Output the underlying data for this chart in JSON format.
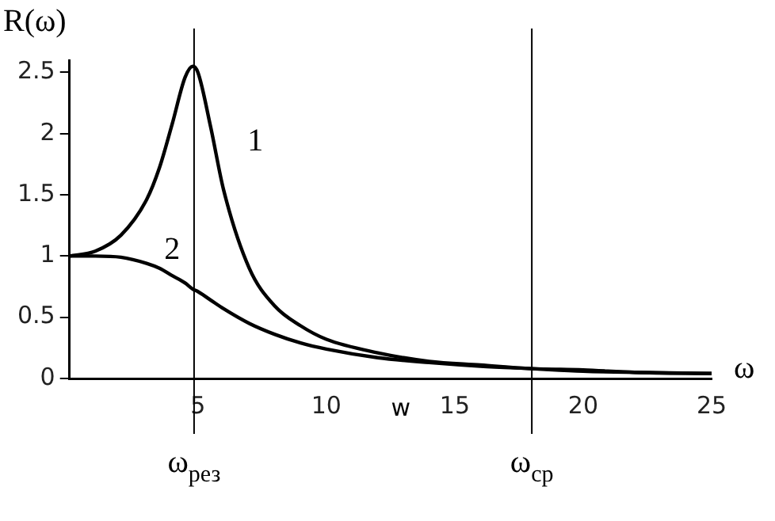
{
  "chart_data": {
    "type": "line",
    "xlabel": "ω",
    "ylabel": "R(ω)",
    "x": [
      0,
      1,
      2,
      3,
      3.5,
      4,
      4.5,
      4.8,
      5,
      5.5,
      6,
      7,
      8,
      9,
      10,
      12,
      14,
      16,
      18,
      20,
      22,
      25
    ],
    "series": [
      {
        "name": "1",
        "color": "#000000",
        "values": [
          1,
          1.04,
          1.17,
          1.46,
          1.72,
          2.08,
          2.46,
          2.55,
          2.5,
          2.05,
          1.54,
          0.9,
          0.59,
          0.43,
          0.32,
          0.21,
          0.14,
          0.11,
          0.08,
          0.07,
          0.05,
          0.04
        ]
      },
      {
        "name": "2",
        "color": "#000000",
        "values": [
          1,
          1,
          0.99,
          0.94,
          0.9,
          0.84,
          0.78,
          0.73,
          0.71,
          0.64,
          0.57,
          0.45,
          0.36,
          0.29,
          0.24,
          0.17,
          0.13,
          0.1,
          0.08,
          0.06,
          0.05,
          0.04
        ]
      }
    ],
    "xlim": [
      0,
      25
    ],
    "xticks": [
      5,
      10,
      15,
      20,
      25
    ],
    "ylim": [
      0,
      2.6
    ],
    "yticks": [
      0,
      0.5,
      1,
      1.5,
      2,
      2.5
    ],
    "grid": false,
    "legend": false,
    "marker": "none",
    "line_style": "solid",
    "ref_lines": [
      {
        "axis": "x",
        "value": 4.85,
        "label": "ω$_{рез}$"
      },
      {
        "axis": "x",
        "value": 18,
        "label": "ω$_{ср}$"
      }
    ],
    "annotations": [
      "w"
    ]
  }
}
